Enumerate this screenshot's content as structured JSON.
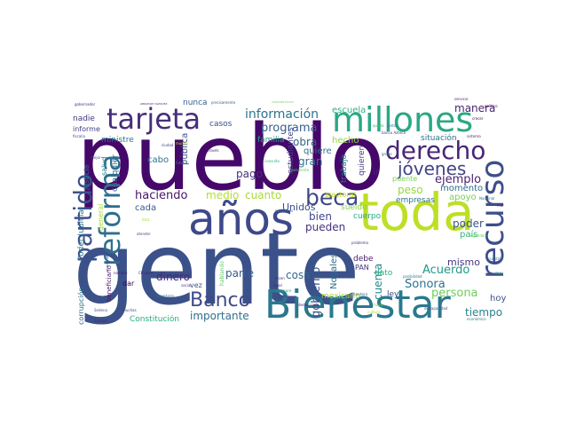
{
  "words": [
    {
      "text": "gente",
      "color": "#3b5189",
      "size": 1.0
    },
    {
      "text": "pueblo",
      "color": "#45086a",
      "size": 0.86
    },
    {
      "text": "toda",
      "color": "#bddf26",
      "size": 0.56
    },
    {
      "text": "años",
      "color": "#3e4989",
      "size": 0.5
    },
    {
      "text": "Bienestar",
      "color": "#2a788e",
      "size": 0.42
    },
    {
      "text": "millones",
      "color": "#2ba784",
      "size": 0.36
    },
    {
      "text": "recurso",
      "color": "#3d4e8a",
      "size": 0.36
    },
    {
      "text": "tarjeta",
      "color": "#472d7b",
      "size": 0.34
    },
    {
      "text": "reforma",
      "color": "#2e6e8e",
      "size": 0.32
    },
    {
      "text": "partido",
      "color": "#3b518b",
      "size": 0.29
    },
    {
      "text": "derecho",
      "color": "#482576",
      "size": 0.26
    },
    {
      "text": "beca",
      "color": "#3f4788",
      "size": 0.25
    },
    {
      "text": "Banco",
      "color": "#3e4a89",
      "size": 0.22
    },
    {
      "text": "jóvenes",
      "color": "#414487",
      "size": 0.2
    },
    {
      "text": "información",
      "color": "#2c728e",
      "size": 0.14
    },
    {
      "text": "programa",
      "color": "#355f8d",
      "size": 0.13
    },
    {
      "text": "haciendo",
      "color": "#481668",
      "size": 0.13
    },
    {
      "text": "medio",
      "color": "#b5de2b",
      "size": 0.12
    },
    {
      "text": "cuanto",
      "color": "#a8db34",
      "size": 0.12
    },
    {
      "text": "obra",
      "color": "#32648e",
      "size": 0.12
    },
    {
      "text": "quiere",
      "color": "#2d708e",
      "size": 0.1
    },
    {
      "text": "gran",
      "color": "#2a768e",
      "size": 0.12
    },
    {
      "text": "pago",
      "color": "#472c7a",
      "size": 0.12
    },
    {
      "text": "cabo",
      "color": "#2d718e",
      "size": 0.1
    },
    {
      "text": "cada",
      "color": "#38588c",
      "size": 0.1
    },
    {
      "text": "manera",
      "color": "#482475",
      "size": 0.12
    },
    {
      "text": "ejemplo",
      "color": "#482173",
      "size": 0.13
    },
    {
      "text": "peso",
      "color": "#95d840",
      "size": 0.12
    },
    {
      "text": "momento",
      "color": "#2f6c8e",
      "size": 0.1
    },
    {
      "text": "apoyo",
      "color": "#7ad151",
      "size": 0.1
    },
    {
      "text": "poder",
      "color": "#3a548c",
      "size": 0.12
    },
    {
      "text": "Acuerdo",
      "color": "#1f9a8a",
      "size": 0.13
    },
    {
      "text": "Sonora",
      "color": "#2c738e",
      "size": 0.13
    },
    {
      "text": "persona",
      "color": "#6ece58",
      "size": 0.13
    },
    {
      "text": "mismo",
      "color": "#453781",
      "size": 0.11
    },
    {
      "text": "tiempo",
      "color": "#26828e",
      "size": 0.12
    },
    {
      "text": "hoy",
      "color": "#3b528b",
      "size": 0.1
    },
    {
      "text": "dinero",
      "color": "#482677",
      "size": 0.12
    },
    {
      "text": "parte",
      "color": "#355e8d",
      "size": 0.12
    },
    {
      "text": "importante",
      "color": "#2e6f8e",
      "size": 0.12
    },
    {
      "text": "Constitución",
      "color": "#26ad81",
      "size": 0.09
    },
    {
      "text": "gobierno",
      "color": "#39568c",
      "size": 0.13
    },
    {
      "text": "cuenta",
      "color": "#238a8d",
      "size": 0.12
    },
    {
      "text": "Unidos",
      "color": "#3d4d8a",
      "size": 0.11
    },
    {
      "text": "bien",
      "color": "#3f4889",
      "size": 0.12
    },
    {
      "text": "pueden",
      "color": "#46327e",
      "size": 0.12
    },
    {
      "text": "cosa",
      "color": "#31688e",
      "size": 0.12
    },
    {
      "text": "Nogales",
      "color": "#2e6d8e",
      "size": 0.1
    },
    {
      "text": "mexicano",
      "color": "#a0da39",
      "size": 0.09
    },
    {
      "text": "ley",
      "color": "#3f4889",
      "size": 0.09
    },
    {
      "text": "debe",
      "color": "#482071",
      "size": 0.09
    },
    {
      "text": "PAN",
      "color": "#443983",
      "size": 0.08
    },
    {
      "text": "dato",
      "color": "#2ab07f",
      "size": 0.09
    },
    {
      "text": "país",
      "color": "#31b57b",
      "size": 0.1
    },
    {
      "text": "empresas",
      "color": "#2d708e",
      "size": 0.09
    },
    {
      "text": "cuerpo",
      "color": "#25ab82",
      "size": 0.09
    },
    {
      "text": "sueldo",
      "color": "#83d34b",
      "size": 0.09
    },
    {
      "text": "electoral",
      "color": "#c2df23",
      "size": 0.08
    },
    {
      "text": "puente",
      "color": "#7ad151",
      "size": 0.08
    },
    {
      "text": "quieren",
      "color": "#443a83",
      "size": 0.09
    },
    {
      "text": "ir",
      "color": "#482878",
      "size": 0.1
    },
    {
      "text": "trabajo",
      "color": "#277f8e",
      "size": 0.09
    },
    {
      "text": "hecho",
      "color": "#90d743",
      "size": 0.1
    },
    {
      "text": "escuela",
      "color": "#2db27d",
      "size": 0.1
    },
    {
      "text": "situación",
      "color": "#2c728e",
      "size": 0.09
    },
    {
      "text": "familia",
      "color": "#20a386",
      "size": 0.09
    },
    {
      "text": "estudiantes",
      "color": "#414487",
      "size": 0.09
    },
    {
      "text": "casos",
      "color": "#3c4f8a",
      "size": 0.09
    },
    {
      "text": "nunca",
      "color": "#355e8d",
      "size": 0.09
    },
    {
      "text": "pública",
      "color": "#3b528b",
      "size": 0.1
    },
    {
      "text": "cualquier",
      "color": "#31688e",
      "size": 0.09
    },
    {
      "text": "ministre",
      "color": "#2a778e",
      "size": 0.09
    },
    {
      "text": "nadie",
      "color": "#463480",
      "size": 0.09
    },
    {
      "text": "informe",
      "color": "#424086",
      "size": 0.08
    },
    {
      "text": "salud",
      "color": "#277f8e",
      "size": 0.08
    },
    {
      "text": "general",
      "color": "#a5db36",
      "size": 0.08
    },
    {
      "text": "beneficiario",
      "color": "#481b6d",
      "size": 0.07
    },
    {
      "text": "Poder Judicial",
      "color": "#2d718e",
      "size": 0.09
    },
    {
      "text": "justicia",
      "color": "#2c738e",
      "size": 0.08
    },
    {
      "text": "corrupción",
      "color": "#2f6c8e",
      "size": 0.08
    },
    {
      "text": "dar",
      "color": "#440154",
      "size": 0.08
    },
    {
      "text": "vez",
      "color": "#3b518b",
      "size": 0.08
    },
    {
      "text": "hablando",
      "color": "#5ec962",
      "size": 0.06
    },
    {
      "text": "Chiapas",
      "color": "#482576",
      "size": 0.04
    },
    {
      "text": "Salinas",
      "color": "#472c7a",
      "size": 0.04
    },
    {
      "text": "secretaría",
      "color": "#2d708e",
      "size": 0.04
    },
    {
      "text": "sistema",
      "color": "#482878",
      "size": 0.04
    },
    {
      "text": "político",
      "color": "#440154",
      "size": 0.04
    },
    {
      "text": "Nacional",
      "color": "#2a788e",
      "size": 0.04
    },
    {
      "text": "frontera",
      "color": "#3b528b",
      "size": 0.04
    },
    {
      "text": "pensiones",
      "color": "#30698e",
      "size": 0.04
    },
    {
      "text": "democracia",
      "color": "#482677",
      "size": 0.04
    },
    {
      "text": "discapacidad",
      "color": "#3e4a89",
      "size": 0.04
    },
    {
      "text": "económico",
      "color": "#27808e",
      "size": 0.04
    },
    {
      "text": "seguridad",
      "color": "#5ec962",
      "size": 0.04
    },
    {
      "text": "servicio",
      "color": "#482475",
      "size": 0.04
    },
    {
      "text": "fiscalía",
      "color": "#3b518b",
      "size": 0.04
    },
    {
      "text": "gobernador",
      "color": "#46327e",
      "size": 0.04
    },
    {
      "text": "ABRAHAM VÁZQUEZ",
      "color": "#482878",
      "size": 0.03
    },
    {
      "text": "VÁZQUEZ PICHO",
      "color": "#6ece58",
      "size": 0.03
    },
    {
      "text": "precisamente",
      "color": "#32658e",
      "size": 0.04
    },
    {
      "text": "banco Azteca",
      "color": "#433e85",
      "size": 0.04
    },
    {
      "text": "pendiente",
      "color": "#5ec962",
      "size": 0.04
    },
    {
      "text": "problema",
      "color": "#46337f",
      "size": 0.04
    },
    {
      "text": "cuestión",
      "color": "#2c728e",
      "size": 0.04
    },
    {
      "text": "nombre",
      "color": "#481a6c",
      "size": 0.04
    },
    {
      "text": "atender",
      "color": "#3d4d8a",
      "size": 0.04
    },
    {
      "text": "mayor",
      "color": "#7ad151",
      "size": 0.04
    },
    {
      "text": "grupo",
      "color": "#2e6d8e",
      "size": 0.04
    },
    {
      "text": "social",
      "color": "#472f7d",
      "size": 0.04
    },
    {
      "text": "mejor",
      "color": "#3c508b",
      "size": 0.04
    },
    {
      "text": "través",
      "color": "#482475",
      "size": 0.04
    },
    {
      "text": "futuro",
      "color": "#238a8d",
      "size": 0.04
    },
    {
      "text": "consulta",
      "color": "#31b57b",
      "size": 0.04
    },
    {
      "text": "lista",
      "color": "#a8db34",
      "size": 0.04
    },
    {
      "text": "mundo",
      "color": "#bddf26",
      "size": 0.04
    },
    {
      "text": "igual",
      "color": "#482878",
      "size": 0.04
    },
    {
      "text": "menos",
      "color": "#3e4989",
      "size": 0.04
    },
    {
      "text": "dicen",
      "color": "#482576",
      "size": 0.04
    },
    {
      "text": "siempre",
      "color": "#1f9e89",
      "size": 0.04
    },
    {
      "text": "cultura",
      "color": "#addc30",
      "size": 0.04
    },
    {
      "text": "muchas",
      "color": "#3f4788",
      "size": 0.04
    },
    {
      "text": "posibilidad",
      "color": "#2a788e",
      "size": 0.04
    },
    {
      "text": "Sedena",
      "color": "#3b528b",
      "size": 0.04
    },
    {
      "text": "MONTIEL REYES",
      "color": "#3e4a89",
      "size": 0.03
    },
    {
      "text": "ciudad",
      "color": "#424086",
      "size": 0.04
    },
    {
      "text": "juntos",
      "color": "#2c728e",
      "size": 0.04
    },
    {
      "text": "crecer",
      "color": "#440154",
      "size": 0.04
    },
    {
      "text": "queda",
      "color": "#35b779",
      "size": 0.04
    },
    {
      "text": "mes",
      "color": "#2ab07f",
      "size": 0.04
    },
    {
      "text": "mar",
      "color": "#482475",
      "size": 0.04
    }
  ]
}
